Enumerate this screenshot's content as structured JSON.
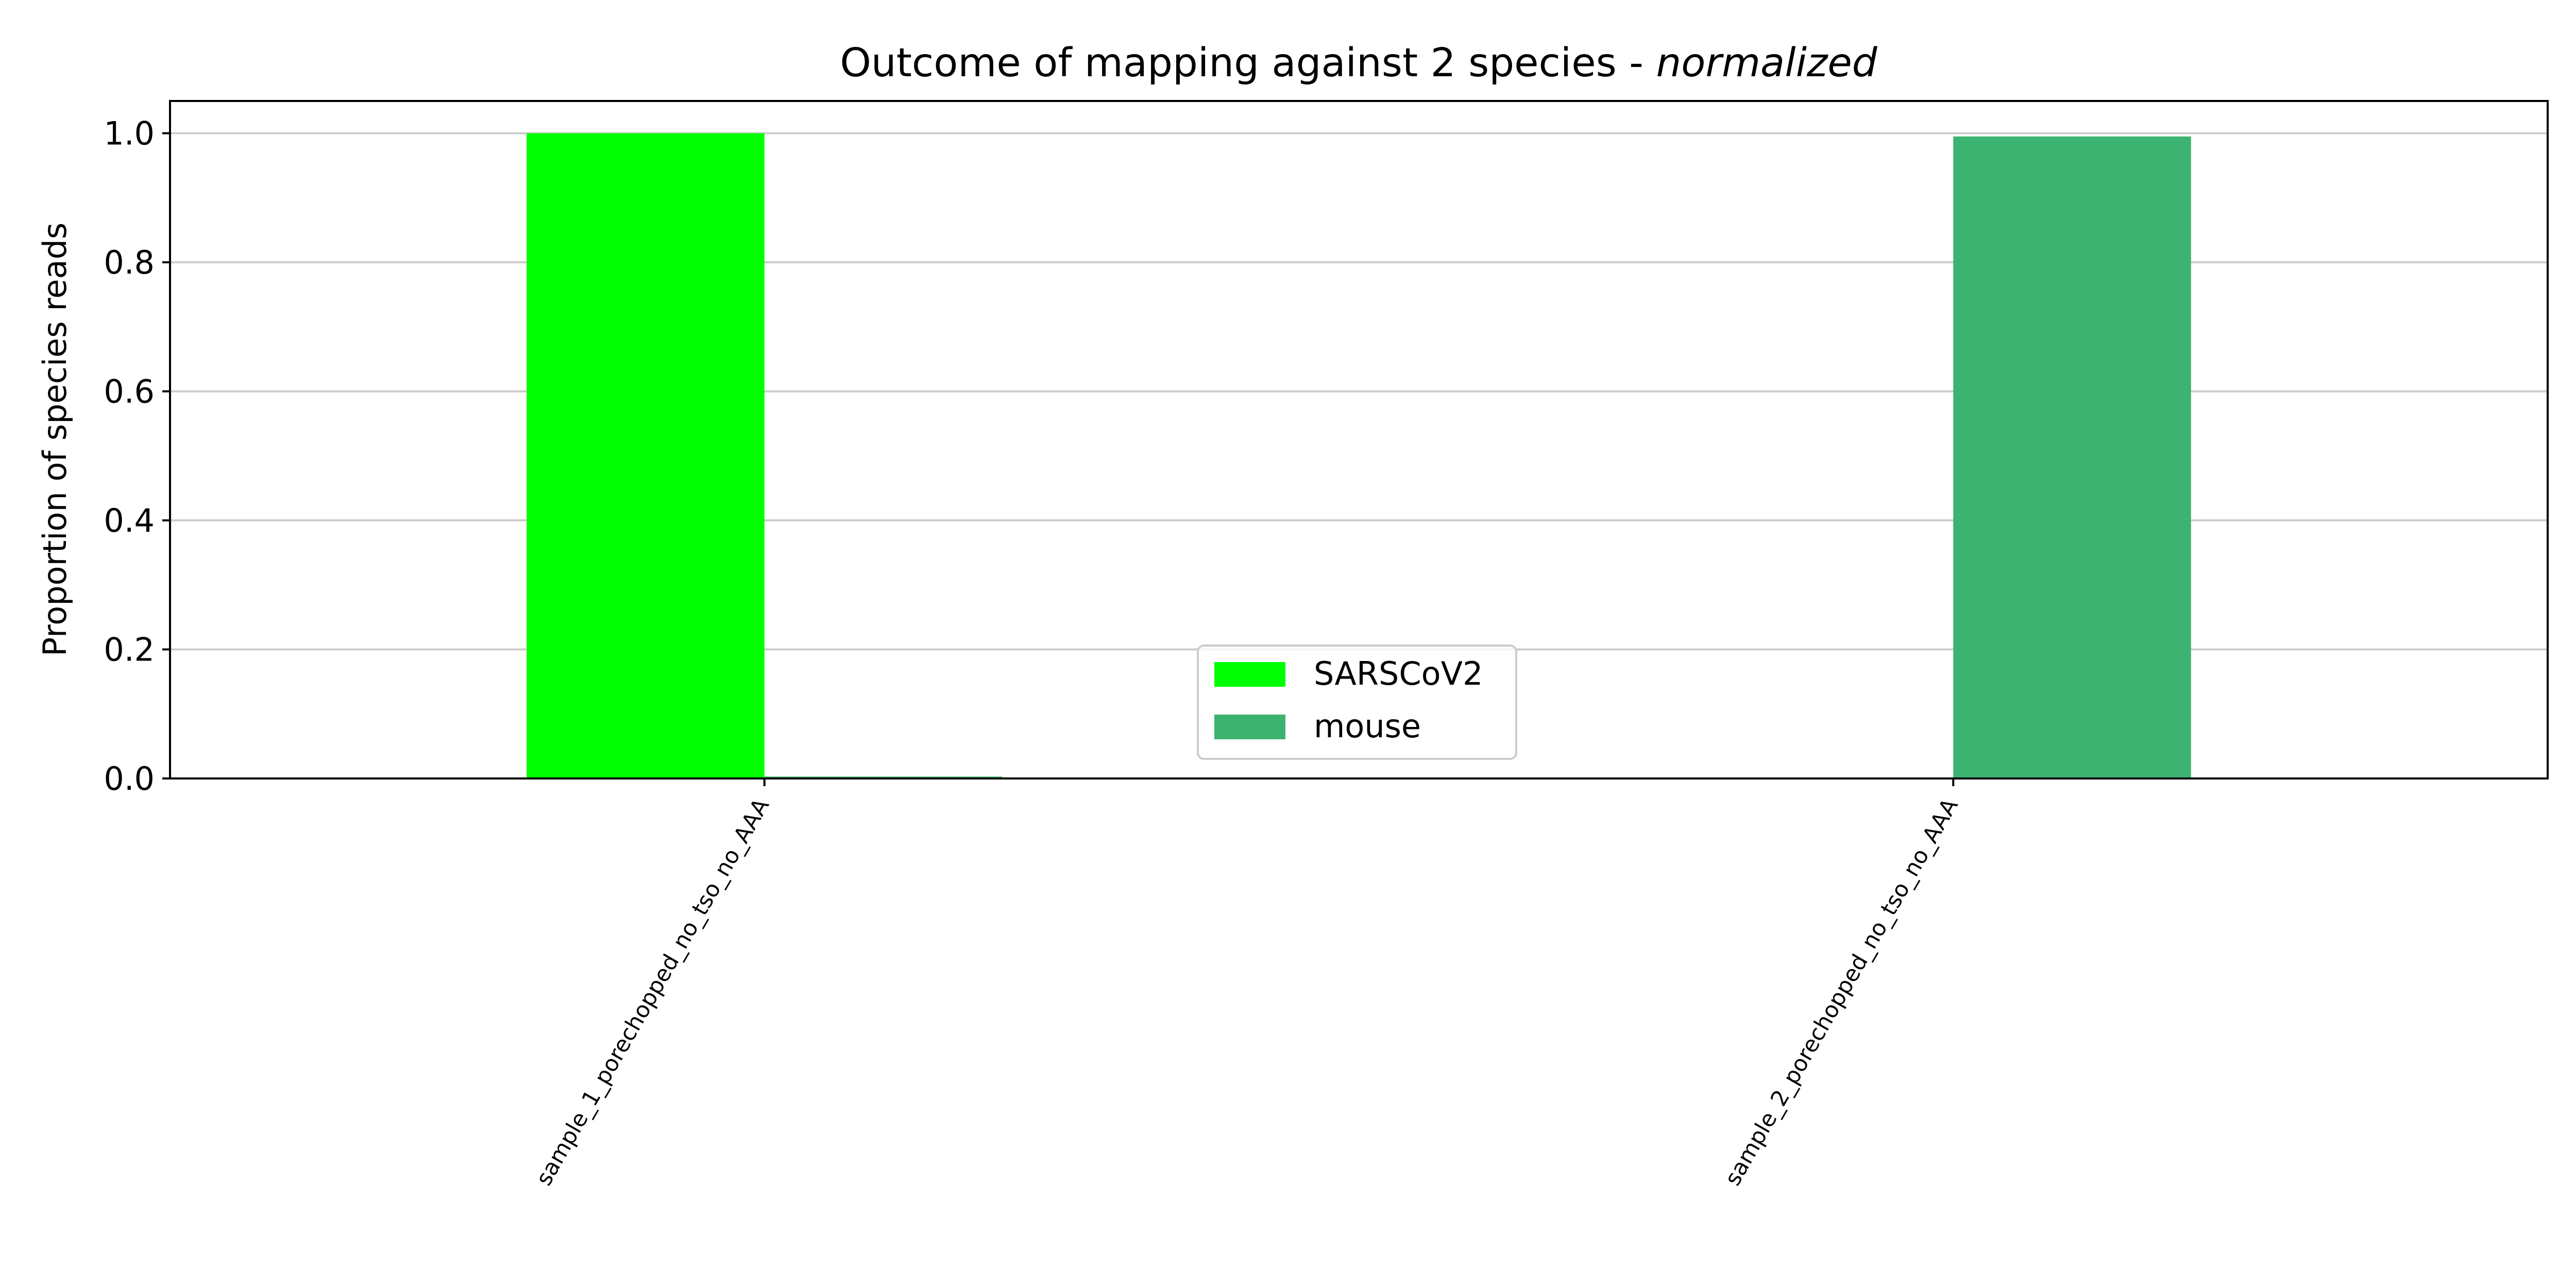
{
  "chart_data": {
    "type": "bar",
    "title": "Outcome of mapping against 2 species - ",
    "title_emphasis": "normalized",
    "ylabel": "Proportion of species reads",
    "xlabel": "",
    "ylim": [
      0,
      1.05
    ],
    "yticks": [
      "0.0",
      "0.2",
      "0.4",
      "0.6",
      "0.8",
      "1.0"
    ],
    "ytick_values": [
      0,
      0.2,
      0.4,
      0.6,
      0.8,
      1.0
    ],
    "grid": "horizontal",
    "categories": [
      "sample_1_porechopped_no_tso_no_AAA",
      "sample_2_porechopped_no_tso_no_AAA"
    ],
    "series": [
      {
        "name": "SARSCoV2",
        "color": "#00ff00",
        "values": [
          1.0,
          0.0
        ]
      },
      {
        "name": "mouse",
        "color": "#3cb371",
        "values": [
          0.003,
          0.995
        ]
      }
    ],
    "legend_position": "lower center"
  }
}
